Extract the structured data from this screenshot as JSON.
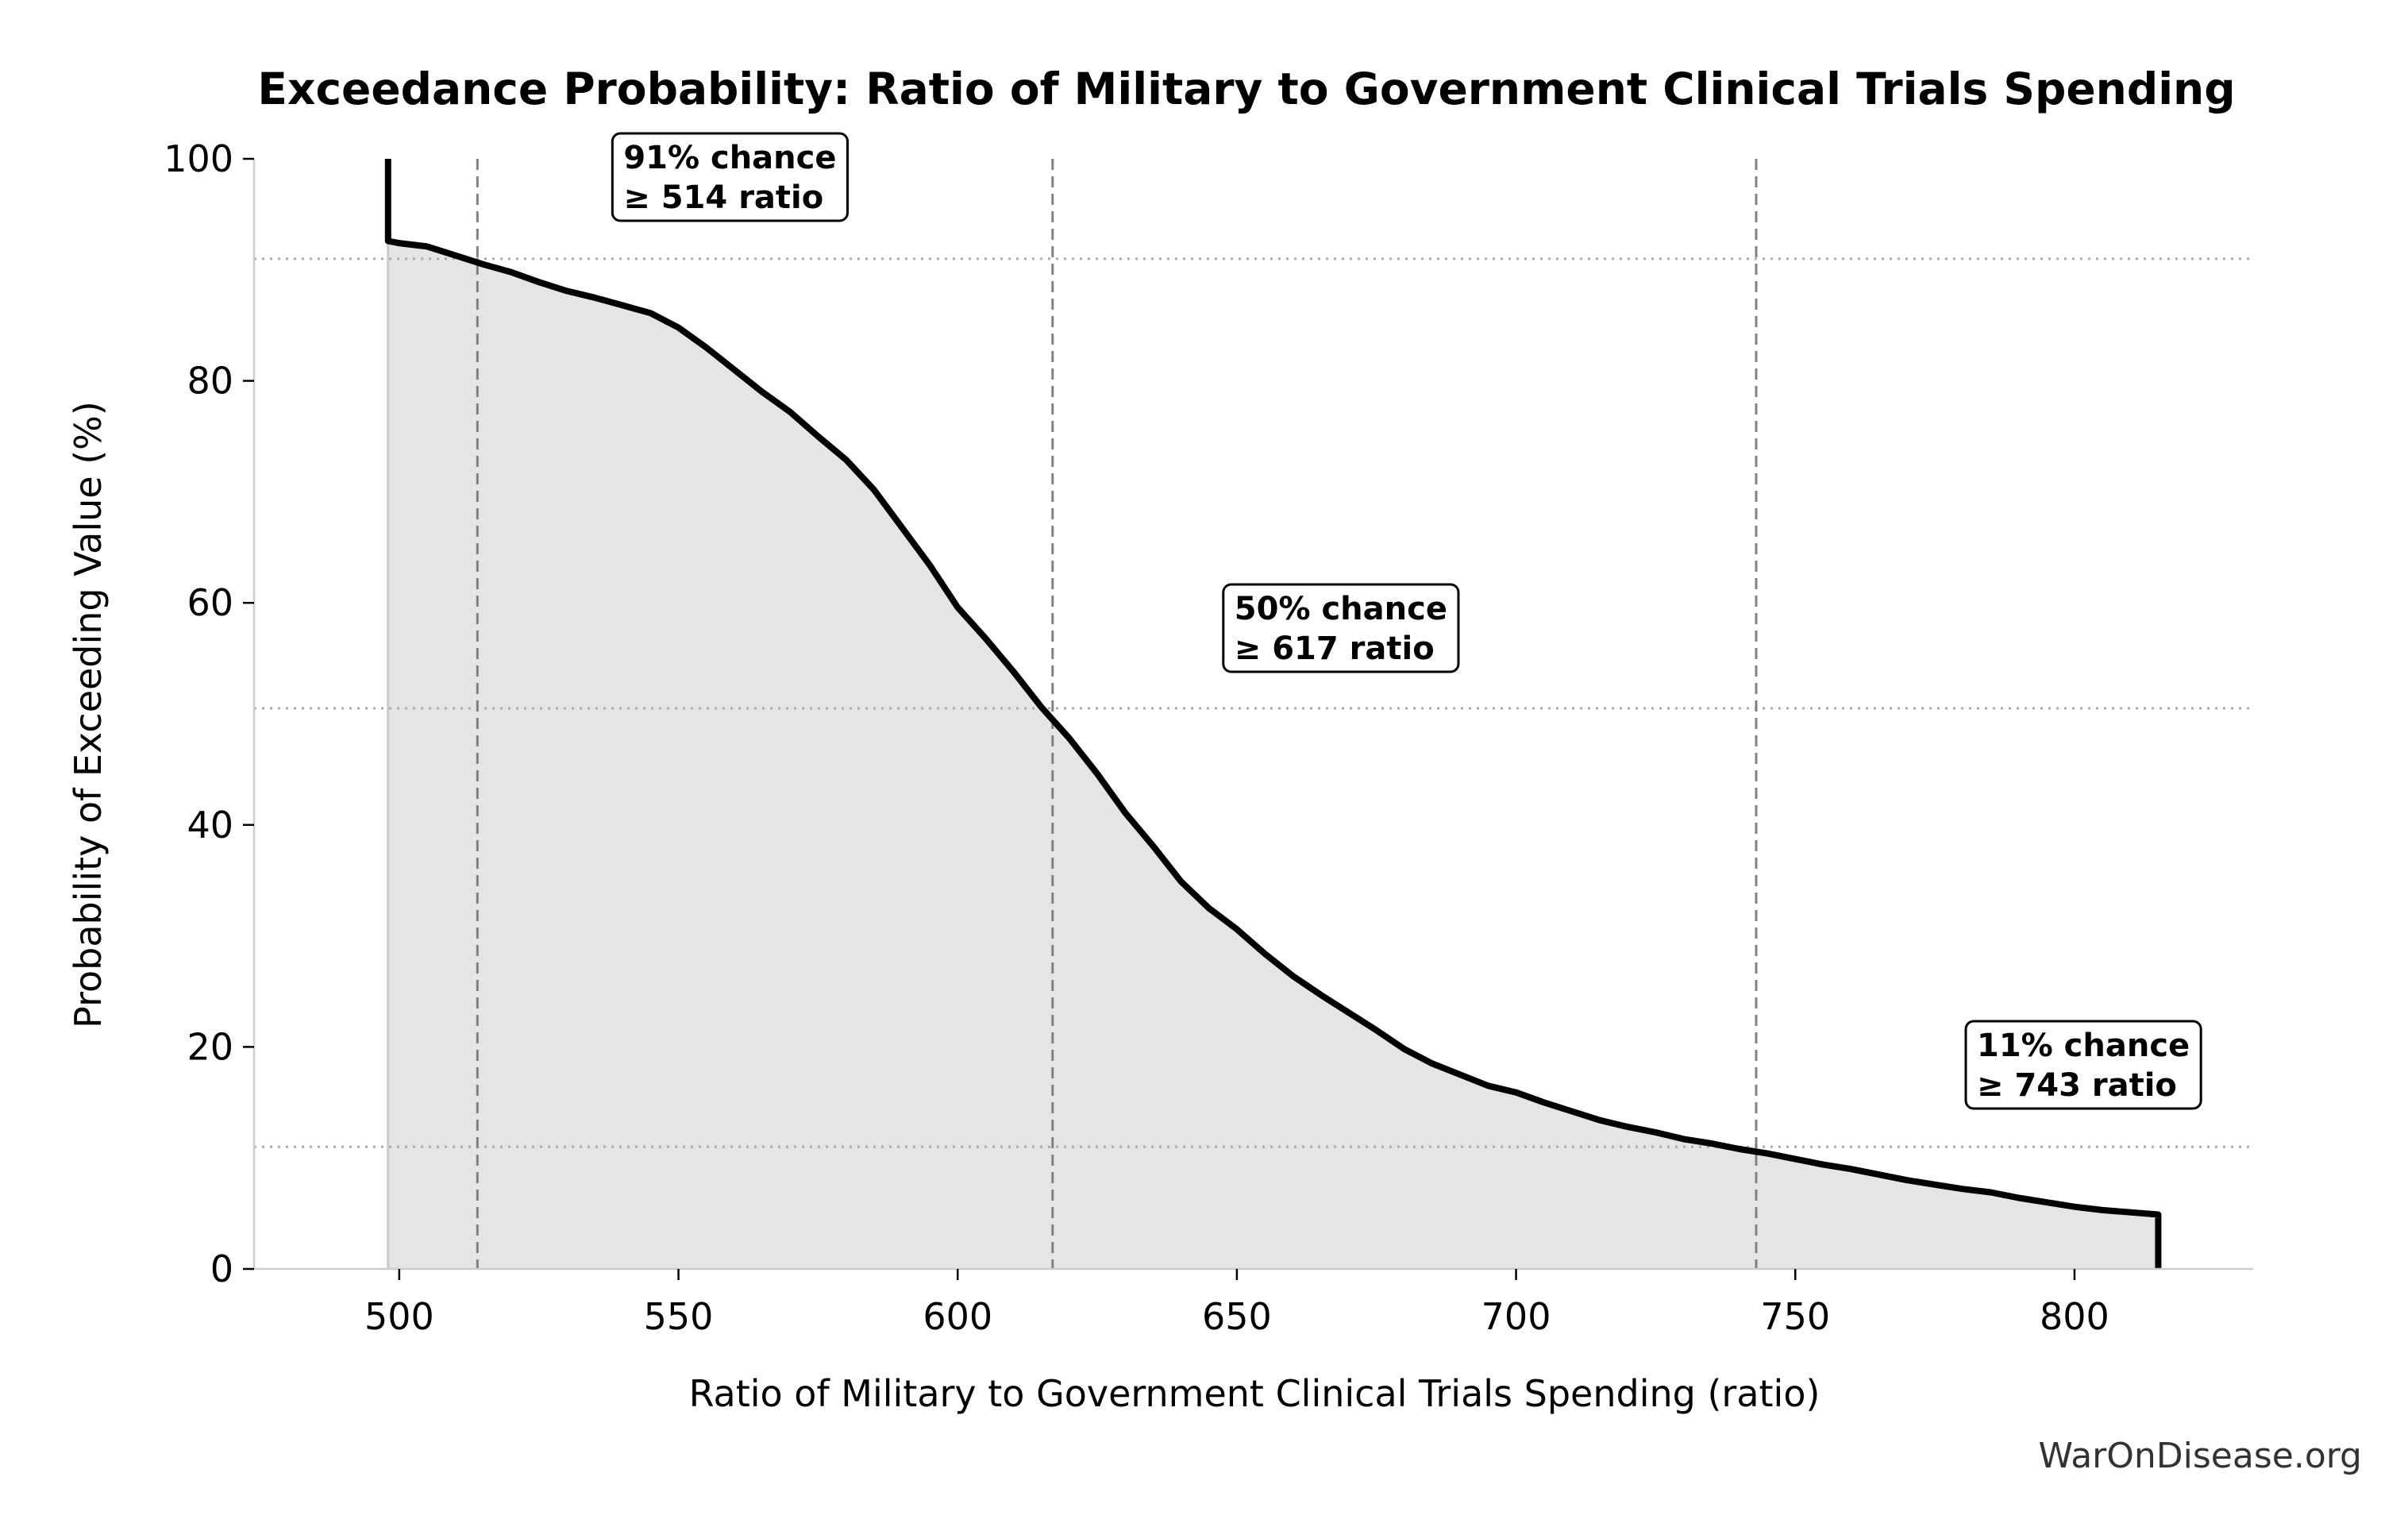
{
  "chart_data": {
    "type": "area",
    "title": "Exceedance Probability: Ratio of Military to Government Clinical Trials Spending",
    "xlabel": "Ratio of Military to Government Clinical Trials Spending (ratio)",
    "ylabel": "Probability of Exceeding Value (%)",
    "xlim": [
      474,
      832
    ],
    "ylim": [
      0,
      100
    ],
    "xticks": [
      500,
      550,
      600,
      650,
      700,
      750,
      800
    ],
    "yticks": [
      0,
      20,
      40,
      60,
      80,
      100
    ],
    "grid": false,
    "series": [
      {
        "x": [
          498,
          498,
          500,
          505,
          510,
          515,
          520,
          525,
          530,
          535,
          540,
          545,
          550,
          555,
          560,
          565,
          570,
          575,
          580,
          585,
          590,
          595,
          600,
          605,
          610,
          615,
          620,
          625,
          630,
          635,
          640,
          645,
          650,
          655,
          660,
          665,
          670,
          675,
          680,
          685,
          690,
          695,
          700,
          705,
          710,
          715,
          720,
          725,
          730,
          735,
          740,
          745,
          750,
          755,
          760,
          765,
          770,
          775,
          780,
          785,
          790,
          795,
          800,
          805,
          810,
          815,
          815
        ],
        "y": [
          100,
          92.6,
          92.4,
          92.1,
          91.3,
          90.5,
          89.8,
          88.9,
          88.1,
          87.5,
          86.8,
          86.1,
          84.8,
          83.0,
          81.0,
          79.0,
          77.2,
          75.0,
          72.9,
          70.2,
          66.8,
          63.4,
          59.6,
          56.8,
          53.8,
          50.6,
          47.8,
          44.6,
          41.1,
          38.1,
          34.9,
          32.5,
          30.6,
          28.4,
          26.4,
          24.7,
          23.1,
          21.5,
          19.8,
          18.5,
          17.5,
          16.5,
          15.9,
          15.0,
          14.2,
          13.4,
          12.8,
          12.3,
          11.7,
          11.3,
          10.8,
          10.4,
          9.9,
          9.4,
          9.0,
          8.5,
          8.0,
          7.6,
          7.2,
          6.9,
          6.4,
          6.0,
          5.6,
          5.3,
          5.1,
          4.9,
          0
        ]
      }
    ],
    "annotations": [
      {
        "line1": "91% chance",
        "line2": "≥ 514 ratio",
        "x": 514,
        "prob": 91
      },
      {
        "line1": "50% chance",
        "line2": "≥ 617 ratio",
        "x": 617,
        "prob": 50.5
      },
      {
        "line1": "11% chance",
        "line2": "≥ 743 ratio",
        "x": 743,
        "prob": 11
      }
    ],
    "watermark": "WarOnDisease.org"
  }
}
